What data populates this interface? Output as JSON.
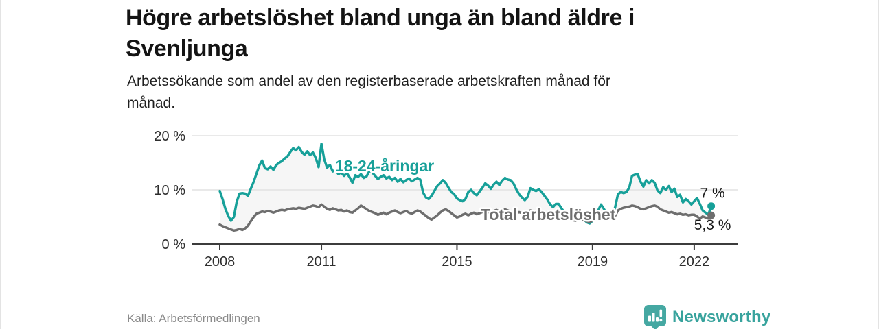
{
  "header": {
    "title": "Högre arbetslöshet bland unga än bland äldre i Svenljunga",
    "title_lines": [
      "Högre arbetslöshet bland unga än bland äldre i",
      "Svenljunga"
    ],
    "subtitle": "Arbetssökande som andel av den registerbaserade arbetskraften månad för månad.",
    "subtitle_lines": [
      "Arbetssökande som andel av den registerbaserade arbetskraften månad för",
      "månad."
    ]
  },
  "footer": {
    "source": "Källa: Arbetsförmedlingen",
    "brand": "Newsworthy"
  },
  "colors": {
    "accent_teal": "#17a099",
    "line_gray": "#6e6e6e",
    "band_fill": "#f6f6f6",
    "brand_teal": "#38a39d",
    "grid": "#e2e2e2",
    "axis": "#3c3c3c"
  },
  "chart_data": {
    "type": "line",
    "title": "Högre arbetslöshet bland unga än bland äldre i Svenljunga",
    "subtitle": "Arbetssökande som andel av den registerbaserade arbetskraften månad för månad.",
    "unit": "%",
    "x_start_year": 2008,
    "x_step_months": 1,
    "x_ticks": [
      2008,
      2011,
      2015,
      2019,
      2022
    ],
    "x_tick_labels": [
      "2008",
      "2011",
      "2015",
      "2019",
      "2022"
    ],
    "y_ticks": [
      0,
      10,
      20
    ],
    "y_tick_labels": [
      "0 %",
      "10 %",
      "20 %"
    ],
    "ylim": [
      0,
      21
    ],
    "grid": true,
    "band_fill_between_series": true,
    "series": [
      {
        "name": "18-24-åringar",
        "color": "#17a099",
        "end_label": "7 %",
        "end_value": 7.0,
        "label_pos": {
          "x_year": 2011.4,
          "y_pct": 13.4
        },
        "values": [
          9.8,
          8.3,
          6.5,
          5.2,
          4.3,
          5.0,
          7.8,
          9.3,
          9.4,
          9.3,
          8.9,
          10.2,
          11.5,
          13.0,
          14.5,
          15.4,
          14.0,
          13.8,
          14.3,
          13.7,
          14.6,
          15.0,
          15.3,
          15.8,
          16.2,
          17.0,
          17.7,
          17.3,
          17.9,
          17.0,
          16.5,
          17.1,
          16.4,
          16.9,
          15.9,
          14.2,
          18.5,
          15.6,
          14.1,
          14.6,
          13.4,
          13.7,
          12.9,
          13.2,
          12.6,
          13.1,
          12.3,
          11.3,
          12.7,
          12.4,
          12.9,
          12.2,
          12.5,
          13.5,
          13.2,
          12.6,
          12.0,
          12.4,
          12.7,
          12.1,
          12.4,
          11.8,
          12.2,
          11.5,
          12.0,
          11.4,
          11.8,
          12.1,
          11.6,
          11.9,
          12.2,
          11.9,
          9.5,
          8.6,
          8.3,
          8.9,
          9.8,
          10.7,
          11.2,
          11.8,
          11.3,
          10.4,
          9.6,
          9.2,
          8.4,
          8.1,
          7.9,
          8.3,
          9.6,
          10.0,
          9.4,
          9.0,
          9.7,
          10.4,
          11.2,
          10.8,
          10.2,
          11.0,
          11.5,
          10.9,
          11.7,
          12.2,
          11.9,
          11.8,
          11.2,
          10.1,
          9.2,
          8.6,
          8.1,
          8.7,
          10.3,
          10.0,
          9.8,
          10.1,
          9.6,
          8.9,
          8.2,
          7.3,
          6.8,
          7.4,
          7.4,
          6.6,
          5.9,
          5.3,
          4.9,
          4.6,
          4.4,
          4.7,
          5.1,
          4.5,
          4.0,
          3.8,
          4.3,
          5.1,
          6.2,
          7.3,
          6.5,
          5.6,
          4.9,
          5.4,
          6.8,
          9.2,
          9.6,
          9.4,
          9.6,
          10.4,
          12.6,
          12.8,
          12.9,
          11.5,
          10.6,
          11.8,
          11.2,
          11.8,
          11.3,
          9.9,
          9.4,
          10.5,
          10.0,
          10.7,
          9.6,
          10.2,
          8.7,
          9.1,
          7.7,
          8.3,
          7.9,
          7.3,
          7.9,
          8.5,
          7.4,
          6.2,
          5.8,
          5.4,
          7.0
        ]
      },
      {
        "name": "Total arbetslöshet",
        "color": "#6e6e6e",
        "end_label": "5,3 %",
        "end_value": 5.3,
        "label_pos": {
          "x_year": 2015.7,
          "y_pct": 4.4
        },
        "values": [
          3.6,
          3.3,
          3.1,
          2.9,
          2.7,
          2.5,
          2.6,
          2.8,
          2.6,
          2.9,
          3.4,
          4.2,
          5.0,
          5.6,
          5.8,
          6.0,
          5.9,
          6.1,
          6.0,
          5.8,
          6.0,
          6.2,
          6.3,
          6.2,
          6.4,
          6.5,
          6.6,
          6.5,
          6.7,
          6.6,
          6.5,
          6.7,
          6.9,
          7.1,
          7.0,
          6.8,
          7.3,
          6.9,
          6.5,
          6.3,
          6.6,
          6.4,
          6.2,
          6.3,
          6.0,
          6.2,
          5.9,
          5.8,
          6.2,
          6.6,
          7.1,
          6.8,
          6.4,
          6.1,
          5.9,
          5.7,
          5.4,
          5.6,
          5.8,
          5.5,
          5.8,
          6.0,
          6.2,
          5.9,
          5.7,
          5.9,
          6.1,
          5.8,
          5.6,
          5.9,
          6.2,
          6.0,
          5.6,
          5.2,
          4.8,
          4.5,
          4.9,
          5.3,
          5.8,
          6.2,
          6.4,
          6.1,
          5.7,
          5.3,
          4.9,
          5.1,
          5.4,
          5.6,
          5.3,
          5.6,
          5.8,
          5.5,
          5.7,
          5.9,
          6.1,
          5.8,
          5.9,
          6.1,
          6.3,
          6.0,
          6.2,
          6.4,
          6.2,
          6.0,
          5.8,
          5.6,
          5.9,
          5.7,
          5.8,
          6.0,
          6.2,
          6.0,
          5.9,
          6.1,
          5.8,
          5.6,
          5.4,
          5.2,
          5.0,
          5.2,
          5.4,
          5.2,
          5.0,
          4.8,
          4.6,
          4.4,
          4.3,
          4.5,
          4.7,
          4.4,
          4.2,
          4.1,
          4.3,
          4.5,
          4.7,
          4.9,
          4.6,
          4.4,
          4.7,
          4.9,
          5.2,
          6.2,
          6.5,
          6.7,
          6.8,
          6.9,
          7.1,
          7.0,
          6.8,
          6.5,
          6.4,
          6.6,
          6.8,
          7.0,
          7.1,
          6.9,
          6.4,
          6.2,
          6.0,
          5.8,
          5.9,
          5.7,
          5.5,
          5.6,
          5.4,
          5.5,
          5.3,
          5.4,
          5.4,
          5.1,
          4.7,
          5.1,
          4.9,
          4.7,
          5.3
        ]
      }
    ]
  }
}
